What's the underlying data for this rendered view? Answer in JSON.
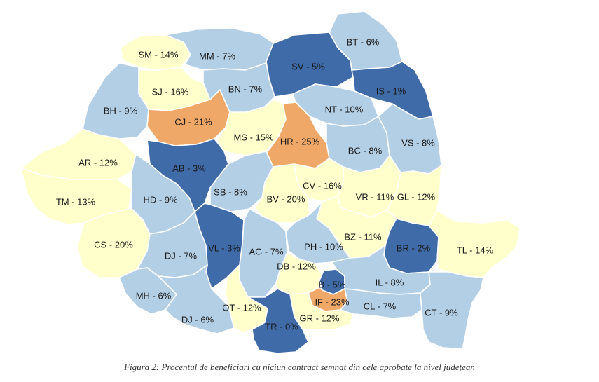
{
  "colors": {
    "0-5": "#3f6ba8",
    "6-10": "#b3cfe5",
    "11-20": "#ffffcc",
    "21-25": "#f0a868"
  },
  "counties": [
    {
      "code": "SM",
      "label": "SM - 14%",
      "value": 14
    },
    {
      "code": "MM",
      "label": "MM - 7%",
      "value": 7
    },
    {
      "code": "SV",
      "label": "SV - 5%",
      "value": 5
    },
    {
      "code": "BT",
      "label": "BT - 6%",
      "value": 6
    },
    {
      "code": "IS",
      "label": "IS - 1%",
      "value": 1
    },
    {
      "code": "SJ",
      "label": "SJ - 16%",
      "value": 16
    },
    {
      "code": "BN",
      "label": "BN - 7%",
      "value": 7
    },
    {
      "code": "NT",
      "label": "NT - 10%",
      "value": 10
    },
    {
      "code": "BH",
      "label": "BH - 9%",
      "value": 9
    },
    {
      "code": "CJ",
      "label": "CJ - 21%",
      "value": 21
    },
    {
      "code": "MS",
      "label": "MS - 15%",
      "value": 15
    },
    {
      "code": "HR",
      "label": "HR - 25%",
      "value": 25
    },
    {
      "code": "BC",
      "label": "BC - 8%",
      "value": 8
    },
    {
      "code": "VS",
      "label": "VS - 8%",
      "value": 8
    },
    {
      "code": "AR",
      "label": "AR - 12%",
      "value": 12
    },
    {
      "code": "AB",
      "label": "AB - 3%",
      "value": 3
    },
    {
      "code": "CV",
      "label": "CV - 16%",
      "value": 16
    },
    {
      "code": "TM",
      "label": "TM - 13%",
      "value": 13
    },
    {
      "code": "HD",
      "label": "HD - 9%",
      "value": 9
    },
    {
      "code": "SB",
      "label": "SB - 8%",
      "value": 8
    },
    {
      "code": "BV",
      "label": "BV - 20%",
      "value": 20
    },
    {
      "code": "VR",
      "label": "VR - 11%",
      "value": 11
    },
    {
      "code": "GL",
      "label": "GL - 12%",
      "value": 12
    },
    {
      "code": "CS",
      "label": "CS - 20%",
      "value": 20
    },
    {
      "code": "BZ",
      "label": "BZ - 11%",
      "value": 11
    },
    {
      "code": "BR",
      "label": "BR - 2%",
      "value": 2
    },
    {
      "code": "TL",
      "label": "TL - 14%",
      "value": 14
    },
    {
      "code": "DJ-N",
      "label": "DJ - 7%",
      "value": 7
    },
    {
      "code": "VL",
      "label": "VL - 3%",
      "value": 3
    },
    {
      "code": "AG",
      "label": "AG - 7%",
      "value": 7
    },
    {
      "code": "PH",
      "label": "PH - 10%",
      "value": 10
    },
    {
      "code": "DB",
      "label": "DB - 12%",
      "value": 12
    },
    {
      "code": "B",
      "label": "B - 5%",
      "value": 5
    },
    {
      "code": "IL",
      "label": "IL - 8%",
      "value": 8
    },
    {
      "code": "IF",
      "label": "IF - 23%",
      "value": 23
    },
    {
      "code": "MH",
      "label": "MH - 6%",
      "value": 6
    },
    {
      "code": "OT",
      "label": "OT - 12%",
      "value": 12
    },
    {
      "code": "CL",
      "label": "CL - 7%",
      "value": 7
    },
    {
      "code": "CT",
      "label": "CT - 9%",
      "value": 9
    },
    {
      "code": "DJ-S",
      "label": "DJ - 6%",
      "value": 6
    },
    {
      "code": "GR",
      "label": "GR - 12%",
      "value": 12
    },
    {
      "code": "TR",
      "label": "TR - 0%",
      "value": 0
    }
  ],
  "caption": "Figura 2: Procentul de beneficiari cu niciun contract semnat din cele aprobate la nivel județean"
}
